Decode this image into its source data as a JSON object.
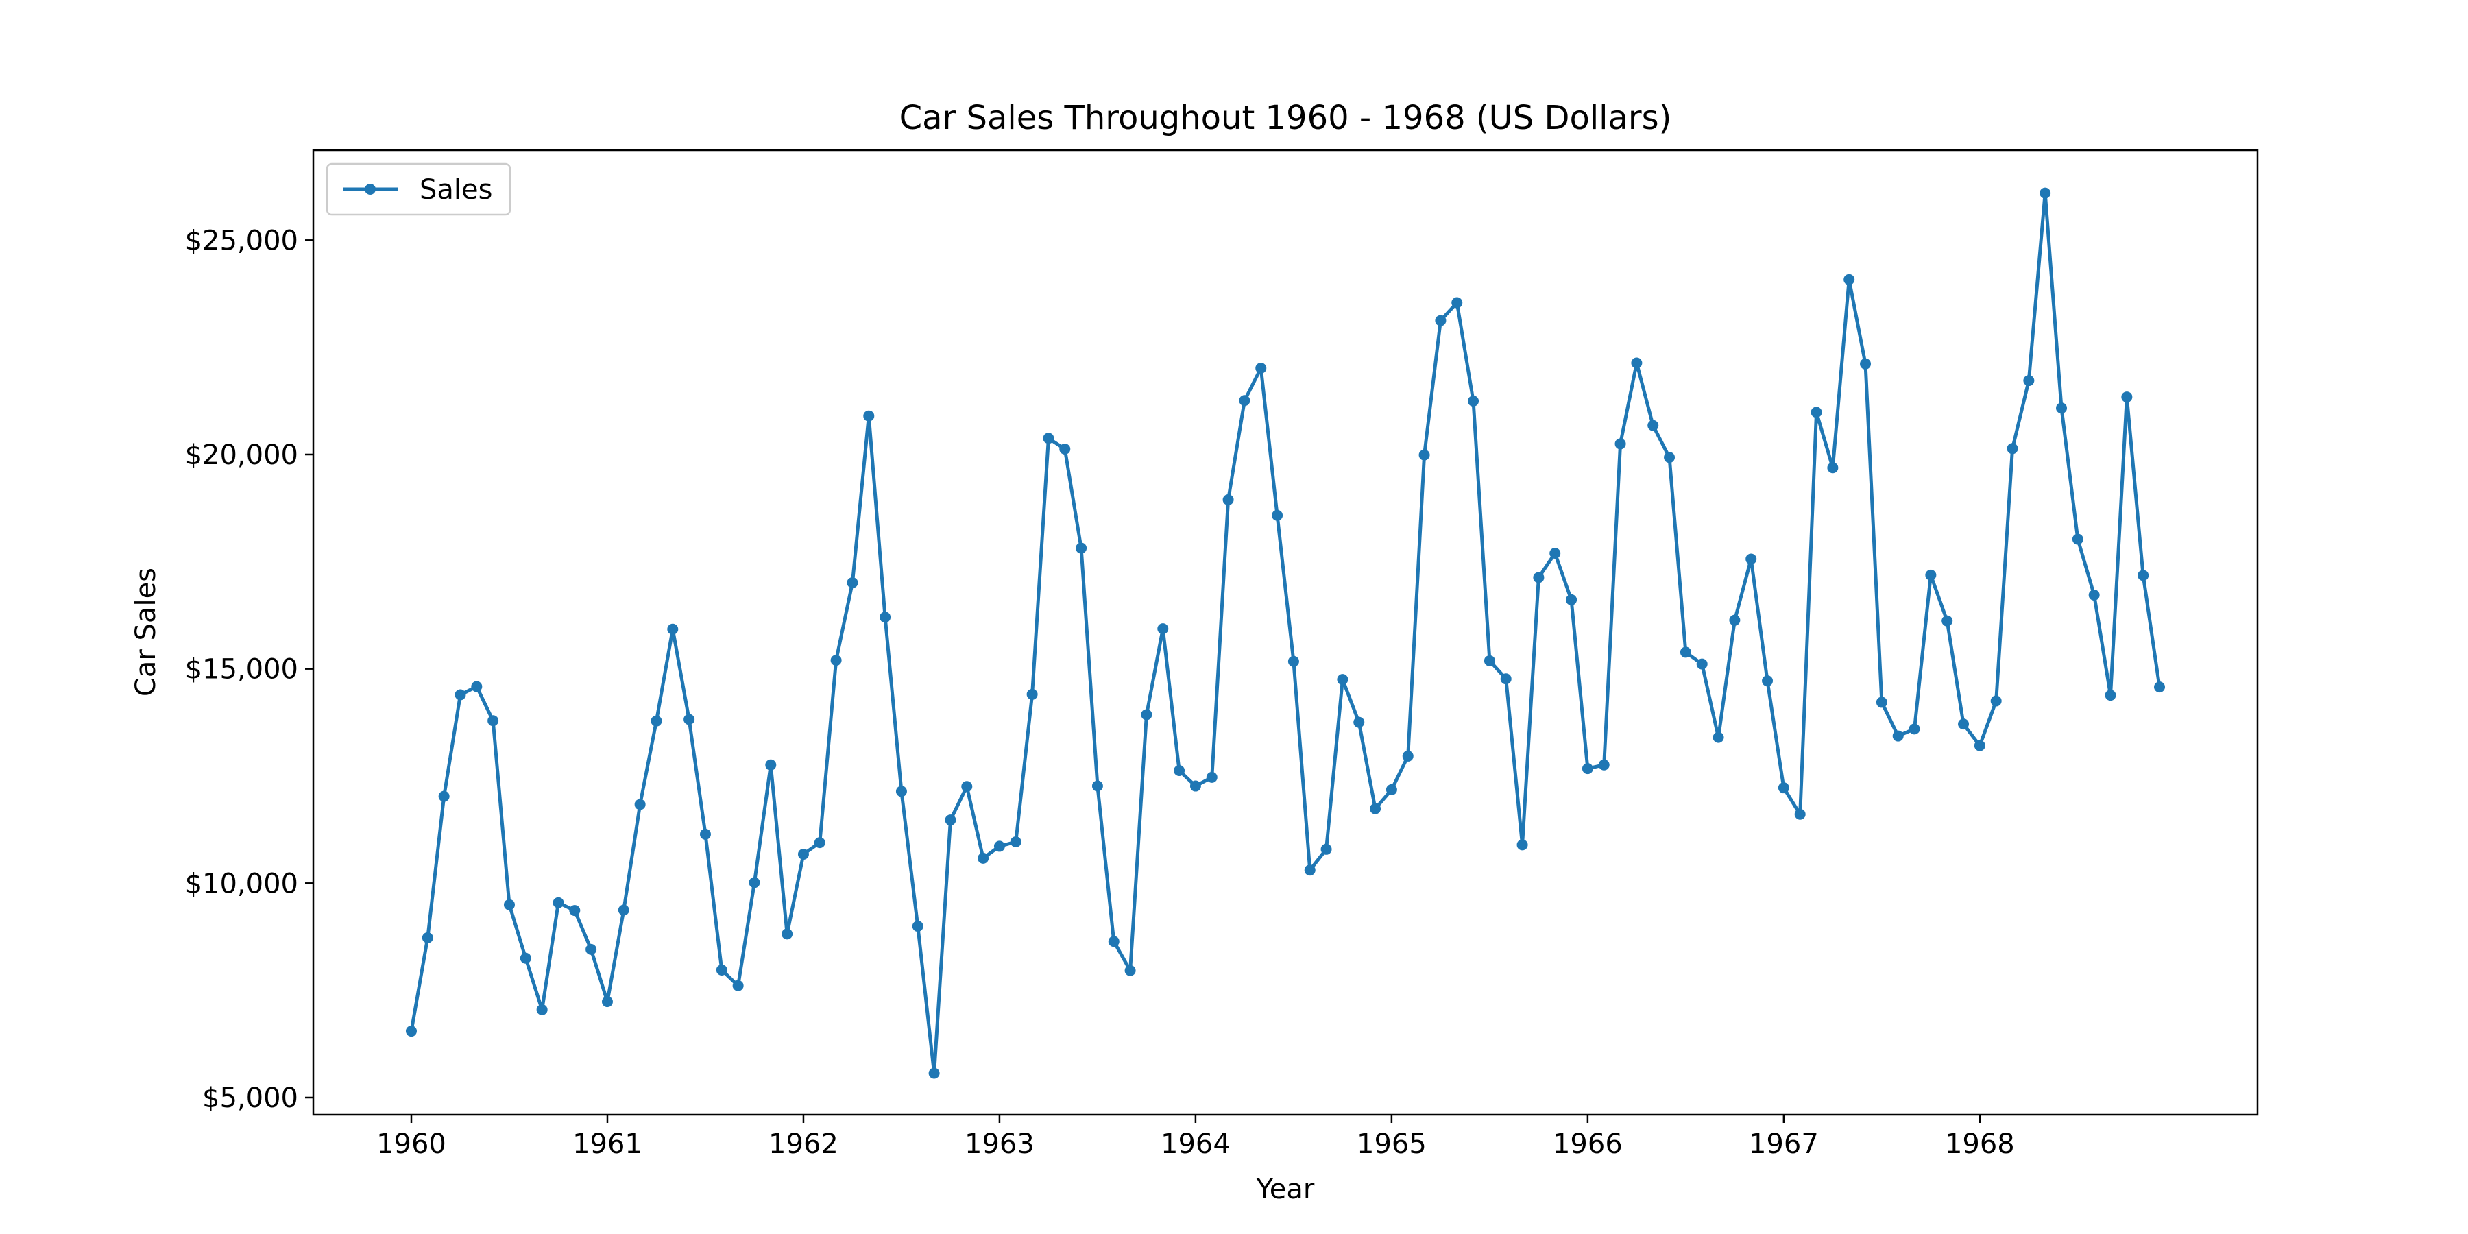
{
  "chart_data": {
    "type": "line",
    "title": "Car Sales Throughout 1960 - 1968 (US Dollars)",
    "xlabel": "Year",
    "ylabel": "Car Sales",
    "xticks": [
      "1960",
      "1961",
      "1962",
      "1963",
      "1964",
      "1965",
      "1966",
      "1967",
      "1968"
    ],
    "yticks": [
      {
        "value": 5000,
        "label": "$5,000"
      },
      {
        "value": 10000,
        "label": "$10,000"
      },
      {
        "value": 15000,
        "label": "$15,000"
      },
      {
        "value": 20000,
        "label": "$20,000"
      },
      {
        "value": 25000,
        "label": "$25,000"
      }
    ],
    "xlim": [
      "1959-07",
      "1969-06"
    ],
    "ylim": [
      4600,
      27100
    ],
    "grid": false,
    "legend_position": "top-left",
    "series": [
      {
        "name": "Sales",
        "color": "#1f77b4",
        "x": [
          "1960-01",
          "1960-02",
          "1960-03",
          "1960-04",
          "1960-05",
          "1960-06",
          "1960-07",
          "1960-08",
          "1960-09",
          "1960-10",
          "1960-11",
          "1960-12",
          "1961-01",
          "1961-02",
          "1961-03",
          "1961-04",
          "1961-05",
          "1961-06",
          "1961-07",
          "1961-08",
          "1961-09",
          "1961-10",
          "1961-11",
          "1961-12",
          "1962-01",
          "1962-02",
          "1962-03",
          "1962-04",
          "1962-05",
          "1962-06",
          "1962-07",
          "1962-08",
          "1962-09",
          "1962-10",
          "1962-11",
          "1962-12",
          "1963-01",
          "1963-02",
          "1963-03",
          "1963-04",
          "1963-05",
          "1963-06",
          "1963-07",
          "1963-08",
          "1963-09",
          "1963-10",
          "1963-11",
          "1963-12",
          "1964-01",
          "1964-02",
          "1964-03",
          "1964-04",
          "1964-05",
          "1964-06",
          "1964-07",
          "1964-08",
          "1964-09",
          "1964-10",
          "1964-11",
          "1964-12",
          "1965-01",
          "1965-02",
          "1965-03",
          "1965-04",
          "1965-05",
          "1965-06",
          "1965-07",
          "1965-08",
          "1965-09",
          "1965-10",
          "1965-11",
          "1965-12",
          "1966-01",
          "1966-02",
          "1966-03",
          "1966-04",
          "1966-05",
          "1966-06",
          "1966-07",
          "1966-08",
          "1966-09",
          "1966-10",
          "1966-11",
          "1966-12",
          "1967-01",
          "1967-02",
          "1967-03",
          "1967-04",
          "1967-05",
          "1967-06",
          "1967-07",
          "1967-08",
          "1967-09",
          "1967-10",
          "1967-11",
          "1967-12",
          "1968-01",
          "1968-02",
          "1968-03",
          "1968-04",
          "1968-05",
          "1968-06",
          "1968-07",
          "1968-08",
          "1968-09",
          "1968-10",
          "1968-11",
          "1968-12"
        ],
        "values": [
          6550,
          8728,
          12026,
          14395,
          14587,
          13791,
          9498,
          8251,
          7049,
          9545,
          9364,
          8456,
          7237,
          9374,
          11837,
          13784,
          15926,
          13821,
          11143,
          7975,
          7610,
          10015,
          12759,
          8816,
          10677,
          10947,
          15200,
          17010,
          20900,
          16205,
          12143,
          8997,
          5568,
          11474,
          12256,
          10583,
          10862,
          10965,
          14405,
          20379,
          20128,
          17816,
          12268,
          8642,
          7962,
          13932,
          15936,
          12628,
          12267,
          12470,
          18944,
          21259,
          22015,
          18581,
          15175,
          10306,
          10792,
          14752,
          13754,
          11738,
          12181,
          12965,
          19990,
          23125,
          23541,
          21247,
          15189,
          14767,
          10895,
          17130,
          17697,
          16611,
          12674,
          12760,
          20249,
          22135,
          20677,
          19933,
          15388,
          15113,
          13401,
          16135,
          17562,
          14720,
          12225,
          11608,
          20985,
          19692,
          24081,
          22114,
          14220,
          13434,
          13598,
          17187,
          16119,
          13713,
          13210,
          14251,
          20139,
          21725,
          26099,
          21084,
          18024,
          16722,
          14385,
          21342,
          17180,
          14577
        ]
      }
    ]
  }
}
